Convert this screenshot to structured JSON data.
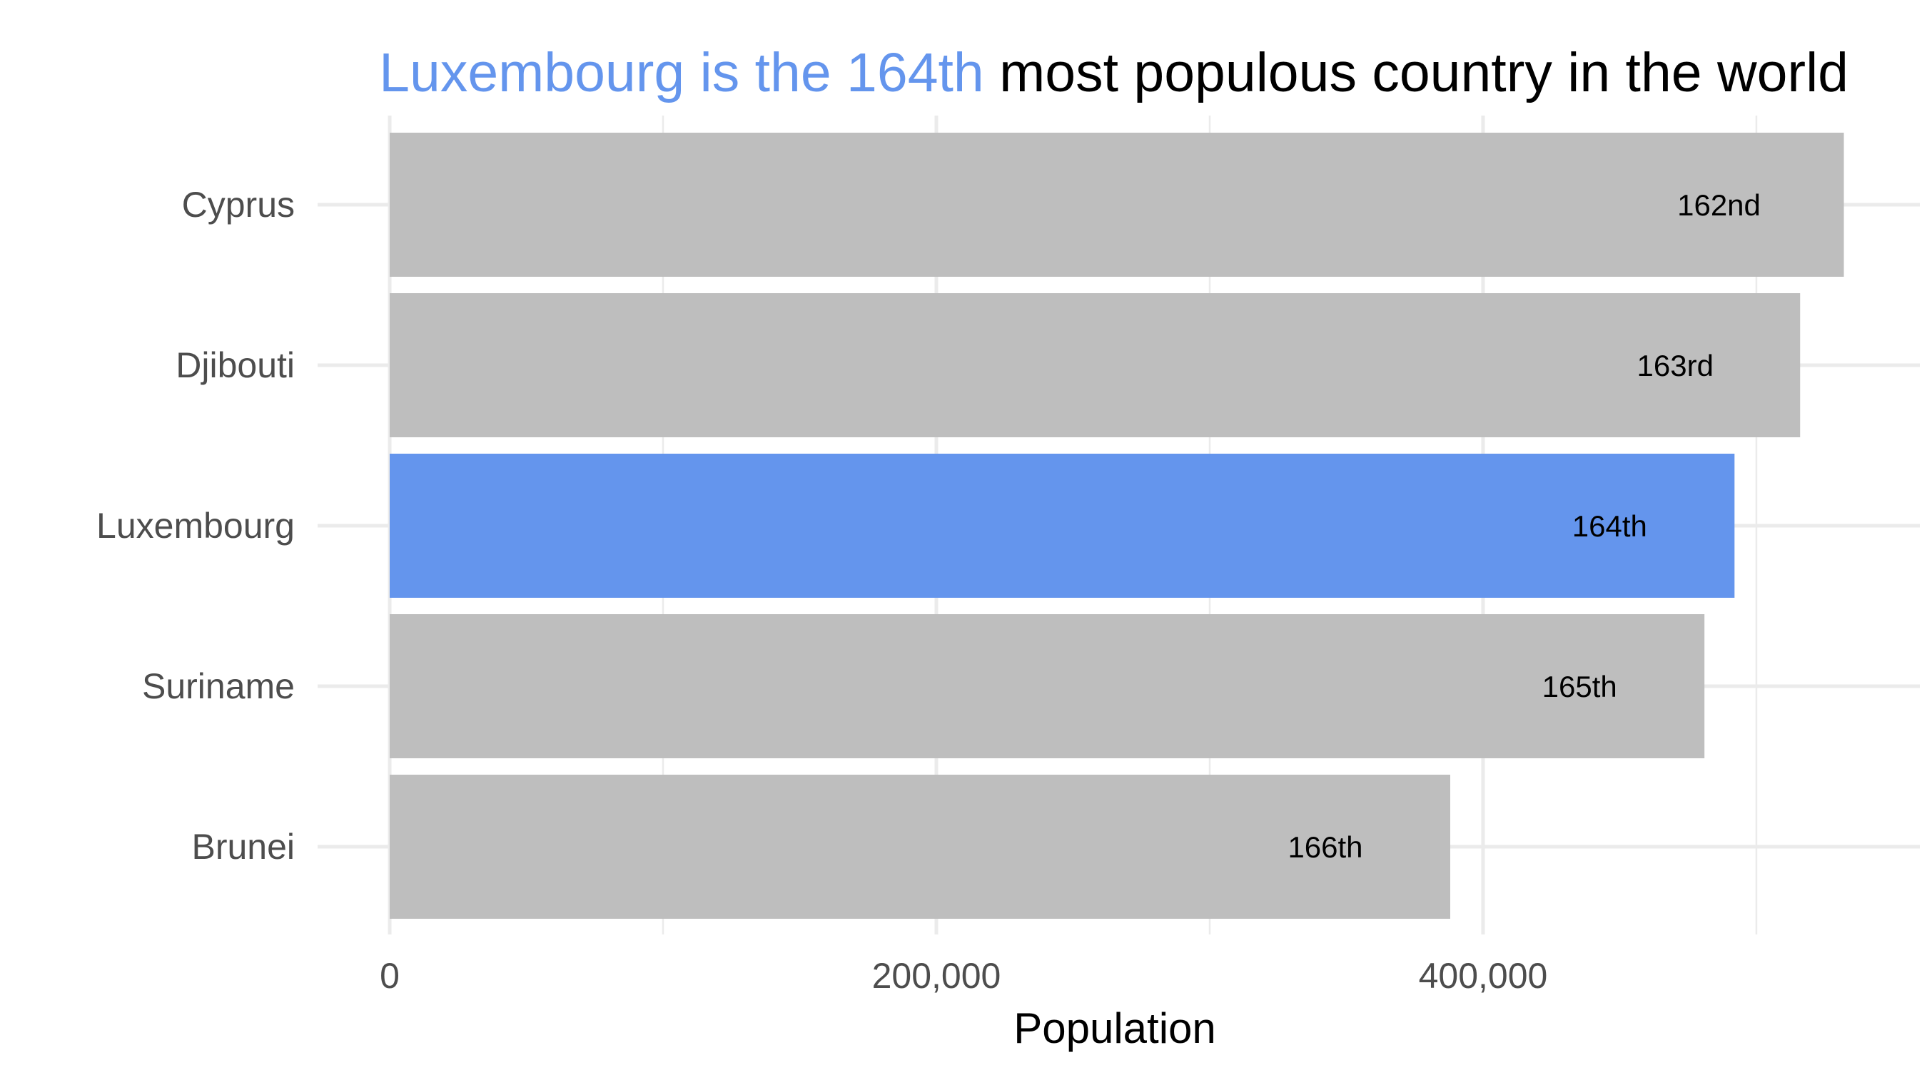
{
  "title": {
    "highlight": "Luxembourg is the 164th",
    "rest": " most populous country in the world"
  },
  "colors": {
    "highlight": "#6495ED",
    "default_bar": "#BEBEBE",
    "grid": "#EBEBEB"
  },
  "chart_data": {
    "type": "bar",
    "orientation": "horizontal",
    "title": "Luxembourg is the 164th most populous country in the world",
    "xlabel": "Population",
    "ylabel": "",
    "categories": [
      "Cyprus",
      "Djibouti",
      "Luxembourg",
      "Suriname",
      "Brunei"
    ],
    "values": [
      532000,
      516000,
      492000,
      481000,
      388000
    ],
    "labels": [
      "162nd",
      "163rd",
      "164th",
      "165th",
      "166th"
    ],
    "highlight": "Luxembourg",
    "xlim": [
      0,
      535000
    ],
    "xticks": [
      0,
      200000,
      400000
    ],
    "xtick_labels": [
      "0",
      "200,000",
      "400,000"
    ],
    "grid": true,
    "legend": "none"
  }
}
